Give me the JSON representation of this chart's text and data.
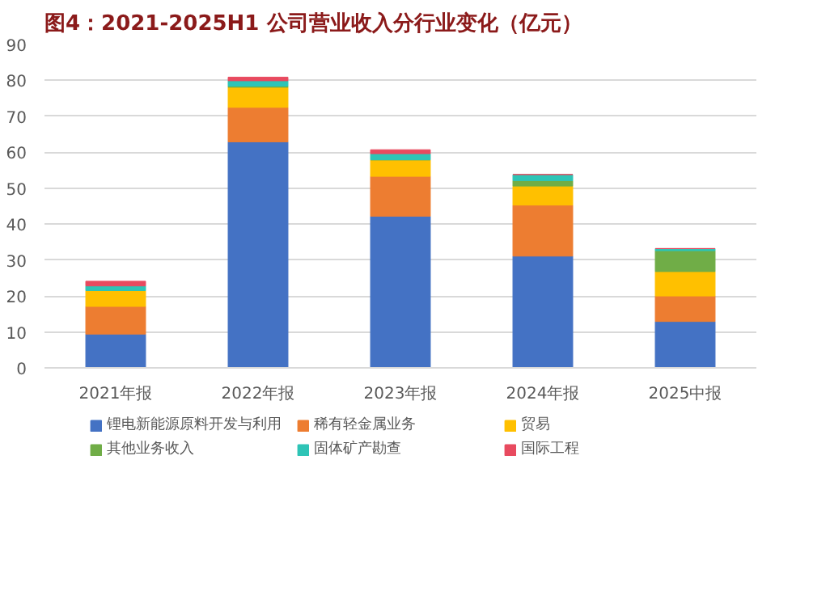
{
  "chart_data": {
    "type": "bar",
    "stacked": true,
    "title": "图4：2021-2025H1 公司营业收入分行业变化（亿元）",
    "categories": [
      "2021年报",
      "2022年报",
      "2023年报",
      "2024年报",
      "2025中报"
    ],
    "series": [
      {
        "name": "锂电新能源原料开发与利用",
        "color": "#4472c4",
        "values": [
          9.4,
          62.9,
          42.2,
          31.1,
          12.9
        ]
      },
      {
        "name": "稀有轻金属业务",
        "color": "#ed7d31",
        "values": [
          7.7,
          9.6,
          11.1,
          14.2,
          7.1
        ]
      },
      {
        "name": "贸易",
        "color": "#ffc000",
        "values": [
          4.4,
          5.6,
          4.6,
          5.3,
          6.8
        ]
      },
      {
        "name": "其他业务收入",
        "color": "#70ad47",
        "values": [
          0,
          0.3,
          0,
          1.5,
          5.8
        ]
      },
      {
        "name": "固体矿产勘查",
        "color": "#2ec4b6",
        "values": [
          1.3,
          1.5,
          1.7,
          1.7,
          0.6
        ]
      },
      {
        "name": "国际工程",
        "color": "#e84a5f",
        "values": [
          1.3,
          1.0,
          1.1,
          0,
          0
        ]
      }
    ],
    "ylim": [
      0,
      90
    ],
    "yticks": [
      0,
      10,
      20,
      30,
      40,
      50,
      60,
      70,
      80,
      90
    ],
    "grid": "y",
    "legend": "bottom"
  }
}
